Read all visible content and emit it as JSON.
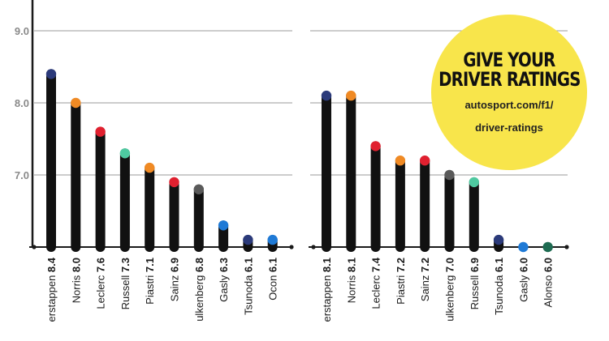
{
  "promo": {
    "title_line1": "GIVE YOUR",
    "title_line2": "DRIVER RATINGS",
    "url_line1": "autosport.com/f1/",
    "url_line2": "driver-ratings",
    "color": "#f8e54b"
  },
  "chart_data": [
    {
      "type": "lollipop",
      "ylim": [
        6.0,
        9.5
      ],
      "yticks": [
        "7.0",
        "8.0",
        "9.0"
      ],
      "grid": true,
      "points": [
        {
          "name": "Verstappen",
          "shown_name": "erstappen",
          "rating": "8.4",
          "value": 8.4,
          "color": "#2b3a7a"
        },
        {
          "name": "Norris",
          "shown_name": "Norris",
          "rating": "8.0",
          "value": 8.0,
          "color": "#f08a24"
        },
        {
          "name": "Leclerc",
          "shown_name": "Leclerc",
          "rating": "7.6",
          "value": 7.6,
          "color": "#e0202f"
        },
        {
          "name": "Russell",
          "shown_name": "Russell",
          "rating": "7.3",
          "value": 7.3,
          "color": "#4ec9a0"
        },
        {
          "name": "Piastri",
          "shown_name": "Piastri",
          "rating": "7.1",
          "value": 7.1,
          "color": "#f08a24"
        },
        {
          "name": "Sainz",
          "shown_name": "Sainz",
          "rating": "6.9",
          "value": 6.9,
          "color": "#e0202f"
        },
        {
          "name": "Hulkenberg",
          "shown_name": "ulkenberg",
          "rating": "6.8",
          "value": 6.8,
          "color": "#5a5a5a"
        },
        {
          "name": "Gasly",
          "shown_name": "Gasly",
          "rating": "6.3",
          "value": 6.3,
          "color": "#1f7ad6"
        },
        {
          "name": "Tsunoda",
          "shown_name": "Tsunoda",
          "rating": "6.1",
          "value": 6.1,
          "color": "#2b3a7a"
        },
        {
          "name": "Ocon",
          "shown_name": "Ocon",
          "rating": "6.1",
          "value": 6.1,
          "color": "#1f7ad6"
        }
      ]
    },
    {
      "type": "lollipop",
      "ylim": [
        6.0,
        9.5
      ],
      "yticks": [
        "7.0",
        "8.0",
        "9.0"
      ],
      "grid": true,
      "points": [
        {
          "name": "Verstappen",
          "shown_name": "erstappen",
          "rating": "8.1",
          "value": 8.1,
          "color": "#2b3a7a"
        },
        {
          "name": "Norris",
          "shown_name": "Norris",
          "rating": "8.1",
          "value": 8.1,
          "color": "#f08a24"
        },
        {
          "name": "Leclerc",
          "shown_name": "Leclerc",
          "rating": "7.4",
          "value": 7.4,
          "color": "#e0202f"
        },
        {
          "name": "Piastri",
          "shown_name": "Piastri",
          "rating": "7.2",
          "value": 7.2,
          "color": "#f08a24"
        },
        {
          "name": "Sainz",
          "shown_name": "Sainz",
          "rating": "7.2",
          "value": 7.2,
          "color": "#e0202f"
        },
        {
          "name": "Hulkenberg",
          "shown_name": "ulkenberg",
          "rating": "7.0",
          "value": 7.0,
          "color": "#5a5a5a"
        },
        {
          "name": "Russell",
          "shown_name": "Russell",
          "rating": "6.9",
          "value": 6.9,
          "color": "#4ec9a0"
        },
        {
          "name": "Tsunoda",
          "shown_name": "Tsunoda",
          "rating": "6.1",
          "value": 6.1,
          "color": "#2b3a7a"
        },
        {
          "name": "Gasly",
          "shown_name": "Gasly",
          "rating": "6.0",
          "value": 6.0,
          "color": "#1f7ad6"
        },
        {
          "name": "Alonso",
          "shown_name": "Alonso",
          "rating": "6.0",
          "value": 6.0,
          "color": "#1e6b52"
        }
      ]
    }
  ]
}
